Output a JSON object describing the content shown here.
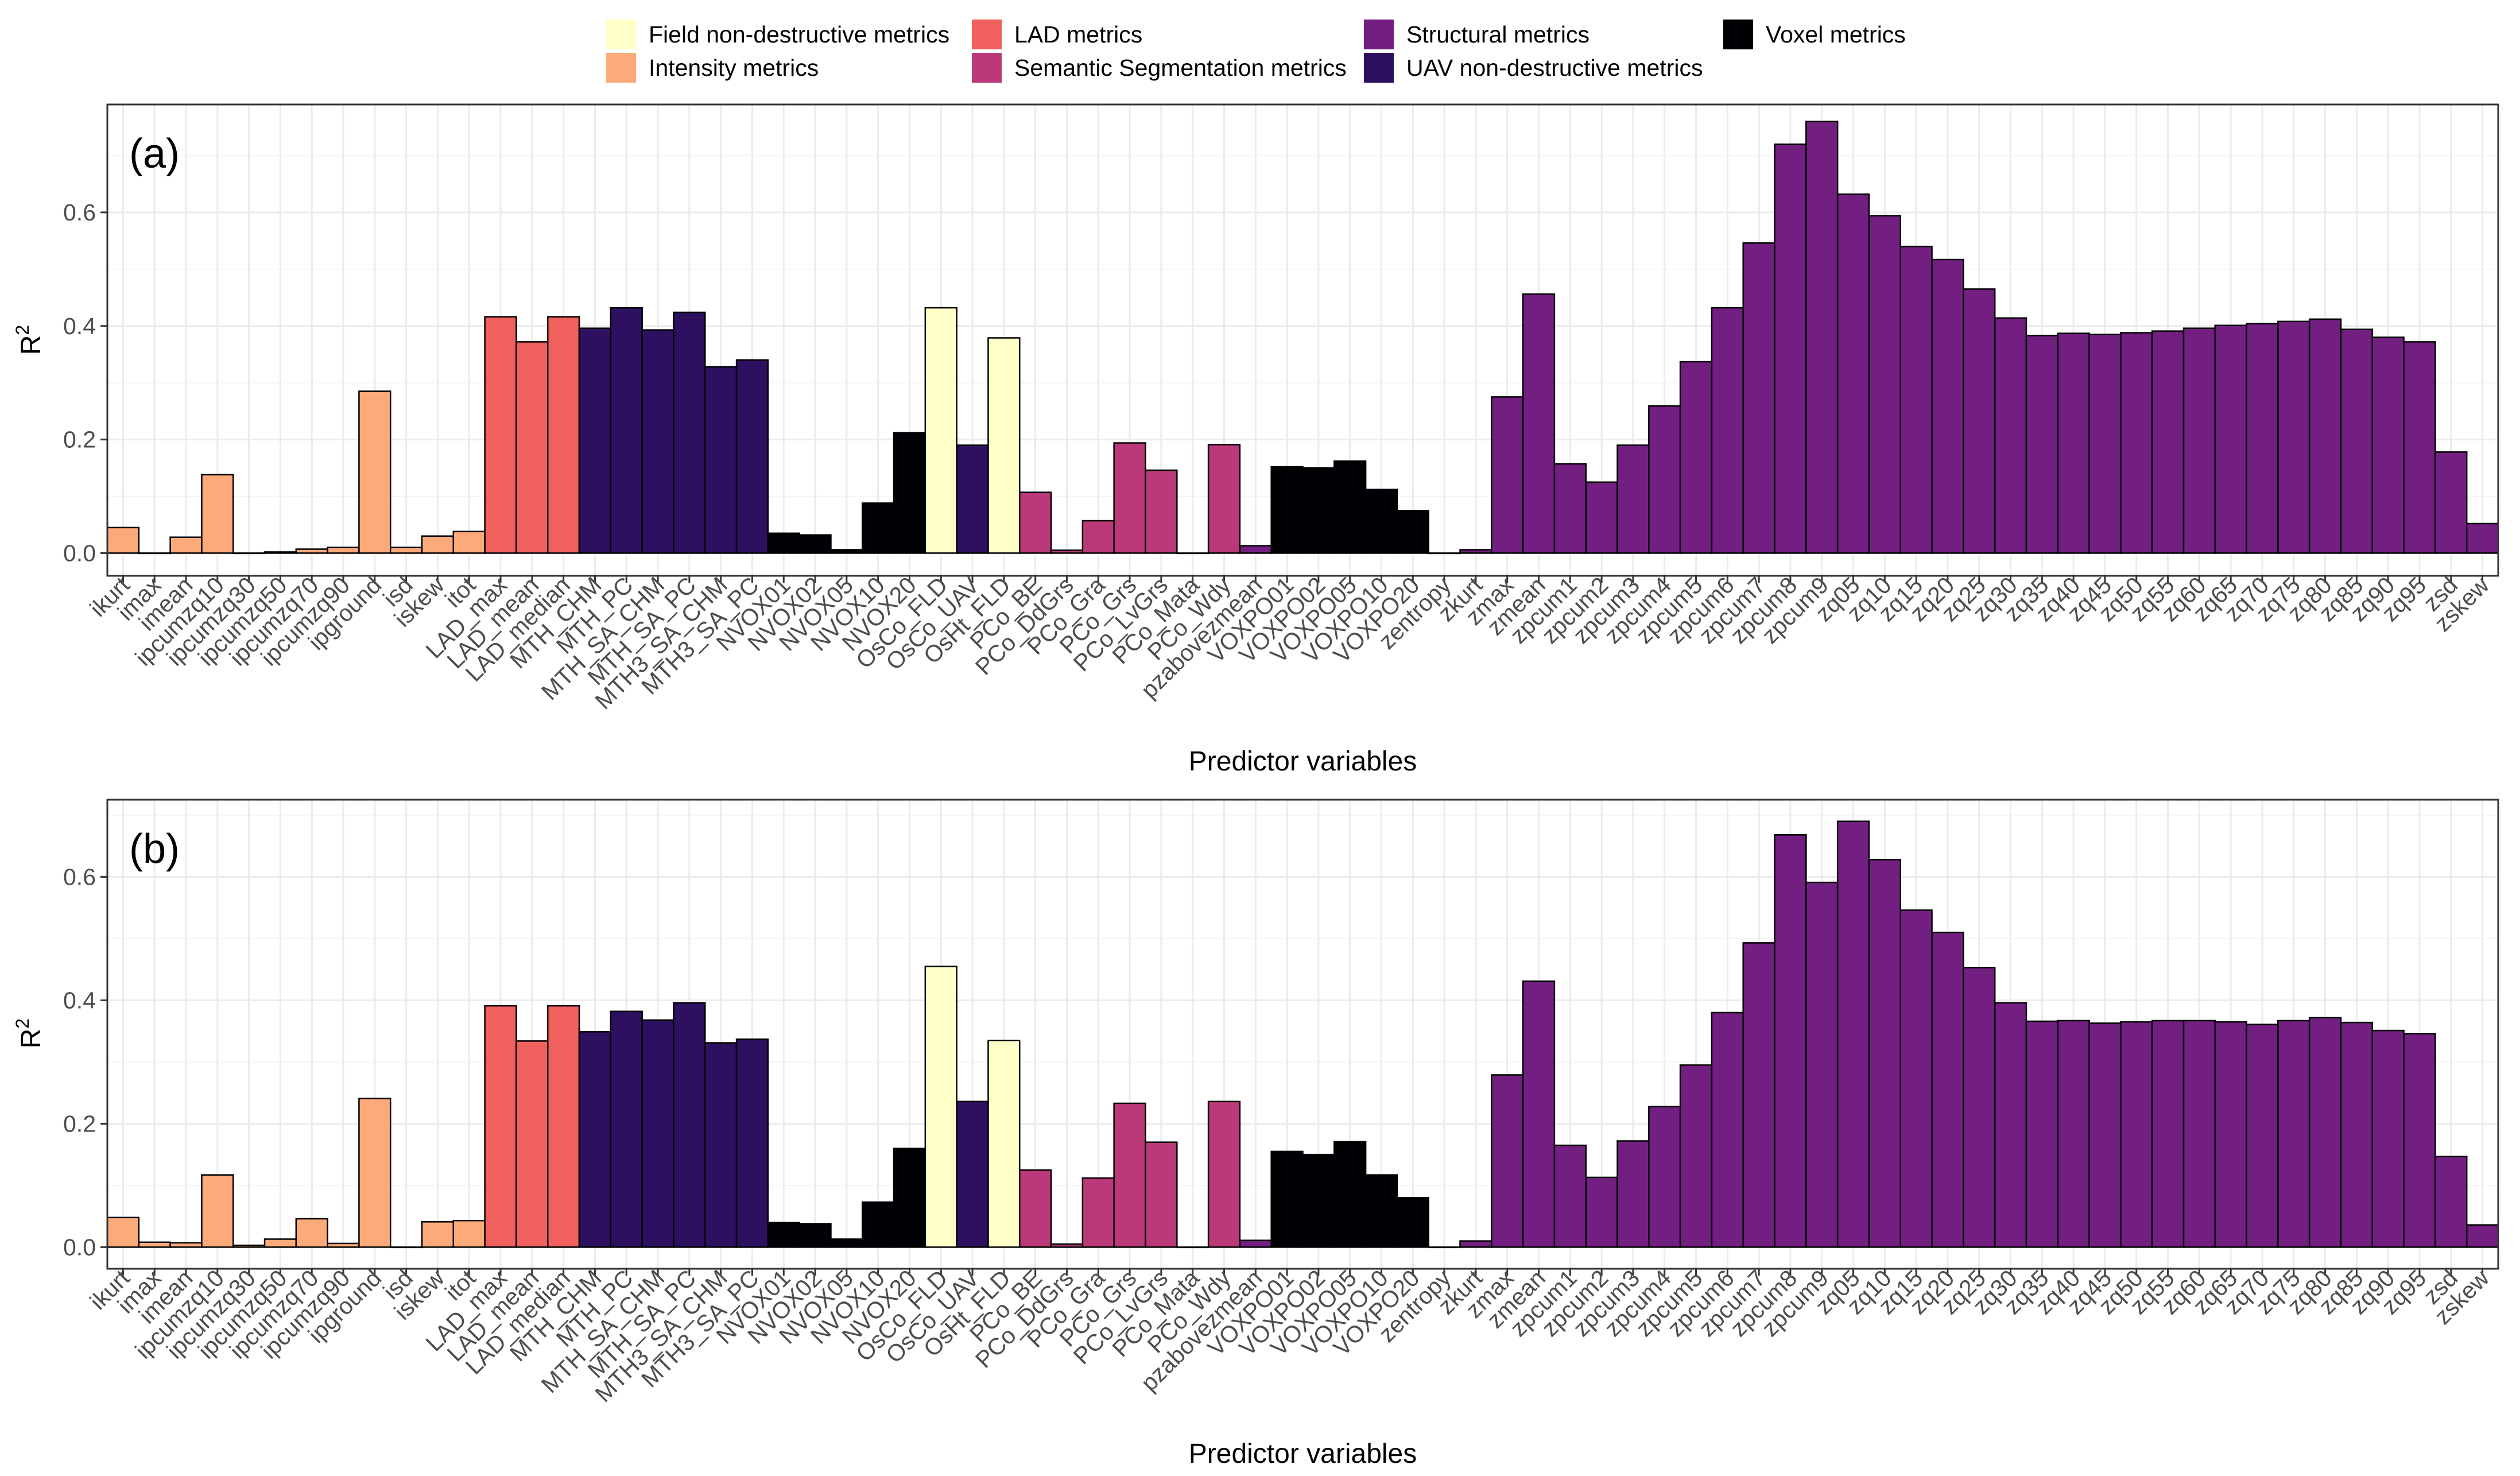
{
  "legend": {
    "items": [
      {
        "key": "field",
        "label": "Field non-destructive metrics",
        "color": "#FFFFC8"
      },
      {
        "key": "intensity",
        "label": "Intensity metrics",
        "color": "#FDAA7A"
      },
      {
        "key": "lad",
        "label": "LAD metrics",
        "color": "#F0605D"
      },
      {
        "key": "semseg",
        "label": "Semantic Segmentation metrics",
        "color": "#BB3978"
      },
      {
        "key": "structural",
        "label": "Structural metrics",
        "color": "#721F81"
      },
      {
        "key": "uav",
        "label": "UAV non-destructive metrics",
        "color": "#2D1160"
      },
      {
        "key": "voxel",
        "label": "Voxel metrics",
        "color": "#000004"
      }
    ]
  },
  "chart_data": [
    {
      "type": "bar",
      "panel_label": "(a)",
      "xlabel": "Predictor variables",
      "ylabel": "R",
      "ylabel_superscript": "2",
      "ylim": [
        -0.04,
        0.79
      ],
      "yticks": [
        0.0,
        0.2,
        0.4,
        0.6
      ],
      "ytick_labels": [
        "0.0",
        "0.2",
        "0.4",
        "0.6"
      ],
      "grid": true,
      "categories": [
        "ikurt",
        "imax",
        "imean",
        "ipcumzq10",
        "ipcumzq30",
        "ipcumzq50",
        "ipcumzq70",
        "ipcumzq90",
        "ipground",
        "isd",
        "iskew",
        "itot",
        "LAD_max",
        "LAD_mean",
        "LAD_median",
        "MTH_CHM",
        "MTH_PC",
        "MTH_SA_CHM",
        "MTH_SA_PC",
        "MTH3_SA_CHM",
        "MTH3_SA_PC",
        "NVOX01",
        "NVOX02",
        "NVOX05",
        "NVOX10",
        "NVOX20",
        "OsCo_FLD",
        "OsCo_UAV",
        "OsHt_FLD",
        "PCo_BE",
        "PCo_DdGrs",
        "PCo_Gra",
        "PCo_Grs",
        "PCo_LvGrs",
        "PCo_Mata",
        "PCo_Wdy",
        "pzabovezmean",
        "VOXPO01",
        "VOXPO02",
        "VOXPO05",
        "VOXPO10",
        "VOXPO20",
        "zentropy",
        "zkurt",
        "zmax",
        "zmean",
        "zpcum1",
        "zpcum2",
        "zpcum3",
        "zpcum4",
        "zpcum5",
        "zpcum6",
        "zpcum7",
        "zpcum8",
        "zpcum9",
        "zq05",
        "zq10",
        "zq15",
        "zq20",
        "zq25",
        "zq30",
        "zq35",
        "zq40",
        "zq45",
        "zq50",
        "zq55",
        "zq60",
        "zq65",
        "zq70",
        "zq75",
        "zq80",
        "zq85",
        "zq90",
        "zq95",
        "zsd",
        "zskew"
      ],
      "groups": [
        "intensity",
        "intensity",
        "intensity",
        "intensity",
        "intensity",
        "intensity",
        "intensity",
        "intensity",
        "intensity",
        "intensity",
        "intensity",
        "intensity",
        "lad",
        "lad",
        "lad",
        "uav",
        "uav",
        "uav",
        "uav",
        "uav",
        "uav",
        "voxel",
        "voxel",
        "voxel",
        "voxel",
        "voxel",
        "field",
        "uav",
        "field",
        "semseg",
        "semseg",
        "semseg",
        "semseg",
        "semseg",
        "semseg",
        "semseg",
        "structural",
        "voxel",
        "voxel",
        "voxel",
        "voxel",
        "voxel",
        "structural",
        "structural",
        "structural",
        "structural",
        "structural",
        "structural",
        "structural",
        "structural",
        "structural",
        "structural",
        "structural",
        "structural",
        "structural",
        "structural",
        "structural",
        "structural",
        "structural",
        "structural",
        "structural",
        "structural",
        "structural",
        "structural",
        "structural",
        "structural",
        "structural",
        "structural",
        "structural",
        "structural",
        "structural",
        "structural",
        "structural",
        "structural",
        "structural",
        "structural"
      ],
      "values": [
        0.045,
        0.0,
        0.028,
        0.138,
        0.0,
        0.002,
        0.007,
        0.01,
        0.285,
        0.01,
        0.03,
        0.038,
        0.416,
        0.372,
        0.416,
        0.396,
        0.432,
        0.393,
        0.424,
        0.328,
        0.34,
        0.035,
        0.032,
        0.006,
        0.088,
        0.212,
        0.432,
        0.19,
        0.379,
        0.107,
        0.005,
        0.057,
        0.194,
        0.146,
        0.0,
        0.191,
        0.013,
        0.152,
        0.15,
        0.162,
        0.112,
        0.075,
        0.0,
        0.006,
        0.275,
        0.456,
        0.157,
        0.125,
        0.19,
        0.259,
        0.337,
        0.432,
        0.546,
        0.72,
        0.76,
        0.632,
        0.594,
        0.54,
        0.517,
        0.465,
        0.414,
        0.383,
        0.387,
        0.385,
        0.388,
        0.391,
        0.396,
        0.401,
        0.404,
        0.408,
        0.412,
        0.394,
        0.38,
        0.372,
        0.178,
        0.052
      ]
    },
    {
      "type": "bar",
      "panel_label": "(b)",
      "xlabel": "Predictor variables",
      "ylabel": "R",
      "ylabel_superscript": "2",
      "ylim": [
        -0.035,
        0.725
      ],
      "yticks": [
        0.0,
        0.2,
        0.4,
        0.6
      ],
      "ytick_labels": [
        "0.0",
        "0.2",
        "0.4",
        "0.6"
      ],
      "grid": true,
      "categories": [
        "ikurt",
        "imax",
        "imean",
        "ipcumzq10",
        "ipcumzq30",
        "ipcumzq50",
        "ipcumzq70",
        "ipcumzq90",
        "ipground",
        "isd",
        "iskew",
        "itot",
        "LAD_max",
        "LAD_mean",
        "LAD_median",
        "MTH_CHM",
        "MTH_PC",
        "MTH_SA_CHM",
        "MTH_SA_PC",
        "MTH3_SA_CHM",
        "MTH3_SA_PC",
        "NVOX01",
        "NVOX02",
        "NVOX05",
        "NVOX10",
        "NVOX20",
        "OsCo_FLD",
        "OsCo_UAV",
        "OsHt_FLD",
        "PCo_BE",
        "PCo_DdGrs",
        "PCo_Gra",
        "PCo_Grs",
        "PCo_LvGrs",
        "PCo_Mata",
        "PCo_Wdy",
        "pzabovezmean",
        "VOXPO01",
        "VOXPO02",
        "VOXPO05",
        "VOXPO10",
        "VOXPO20",
        "zentropy",
        "zkurt",
        "zmax",
        "zmean",
        "zpcum1",
        "zpcum2",
        "zpcum3",
        "zpcum4",
        "zpcum5",
        "zpcum6",
        "zpcum7",
        "zpcum8",
        "zpcum9",
        "zq05",
        "zq10",
        "zq15",
        "zq20",
        "zq25",
        "zq30",
        "zq35",
        "zq40",
        "zq45",
        "zq50",
        "zq55",
        "zq60",
        "zq65",
        "zq70",
        "zq75",
        "zq80",
        "zq85",
        "zq90",
        "zq95",
        "zsd",
        "zskew"
      ],
      "groups": [
        "intensity",
        "intensity",
        "intensity",
        "intensity",
        "intensity",
        "intensity",
        "intensity",
        "intensity",
        "intensity",
        "intensity",
        "intensity",
        "intensity",
        "lad",
        "lad",
        "lad",
        "uav",
        "uav",
        "uav",
        "uav",
        "uav",
        "uav",
        "voxel",
        "voxel",
        "voxel",
        "voxel",
        "voxel",
        "field",
        "uav",
        "field",
        "semseg",
        "semseg",
        "semseg",
        "semseg",
        "semseg",
        "semseg",
        "semseg",
        "structural",
        "voxel",
        "voxel",
        "voxel",
        "voxel",
        "voxel",
        "structural",
        "structural",
        "structural",
        "structural",
        "structural",
        "structural",
        "structural",
        "structural",
        "structural",
        "structural",
        "structural",
        "structural",
        "structural",
        "structural",
        "structural",
        "structural",
        "structural",
        "structural",
        "structural",
        "structural",
        "structural",
        "structural",
        "structural",
        "structural",
        "structural",
        "structural",
        "structural",
        "structural",
        "structural",
        "structural",
        "structural",
        "structural",
        "structural",
        "structural"
      ],
      "values": [
        0.048,
        0.008,
        0.007,
        0.117,
        0.003,
        0.013,
        0.046,
        0.006,
        0.241,
        0.0,
        0.041,
        0.043,
        0.391,
        0.334,
        0.391,
        0.349,
        0.382,
        0.368,
        0.396,
        0.331,
        0.337,
        0.04,
        0.038,
        0.013,
        0.073,
        0.16,
        0.455,
        0.236,
        0.335,
        0.125,
        0.005,
        0.112,
        0.233,
        0.17,
        0.0,
        0.236,
        0.011,
        0.155,
        0.15,
        0.171,
        0.117,
        0.08,
        0.0,
        0.01,
        0.279,
        0.431,
        0.165,
        0.113,
        0.172,
        0.228,
        0.295,
        0.38,
        0.493,
        0.668,
        0.591,
        0.69,
        0.628,
        0.546,
        0.51,
        0.453,
        0.396,
        0.366,
        0.367,
        0.363,
        0.365,
        0.367,
        0.367,
        0.365,
        0.361,
        0.367,
        0.372,
        0.364,
        0.351,
        0.346,
        0.147,
        0.036
      ]
    }
  ]
}
